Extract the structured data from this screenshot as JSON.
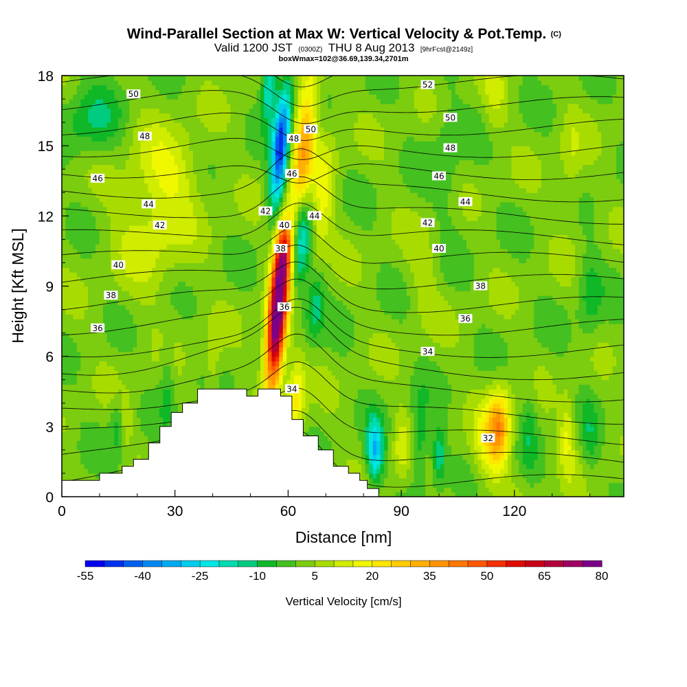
{
  "title": {
    "main": "Wind-Parallel Section at Max W: Vertical Velocity & Pot.Temp.",
    "main_mark": "(C)",
    "valid_prefix": "Valid 1200 JST",
    "valid_zulu": "(0300Z)",
    "valid_date": "THU 8 Aug 2013",
    "forecast": "[9hrFcst@2149z]",
    "box": "boxWmax=102@36.69,139.34,2701m"
  },
  "chart_data": {
    "type": "heatmap",
    "xlabel": "Distance [nm]",
    "ylabel": "Height [Kft MSL]",
    "xlim": [
      0,
      149
    ],
    "ylim": [
      0,
      18
    ],
    "x_ticks": [
      0,
      30,
      60,
      90,
      120
    ],
    "y_ticks": [
      0,
      3,
      6,
      9,
      12,
      15,
      18
    ],
    "terrain": [
      [
        0,
        0.7
      ],
      [
        10,
        0.7
      ],
      [
        10,
        1.0
      ],
      [
        16,
        1.0
      ],
      [
        16,
        1.3
      ],
      [
        19,
        1.3
      ],
      [
        19,
        1.6
      ],
      [
        23,
        1.6
      ],
      [
        23,
        2.3
      ],
      [
        26,
        2.3
      ],
      [
        26,
        3.0
      ],
      [
        29,
        3.0
      ],
      [
        29,
        3.6
      ],
      [
        32,
        3.6
      ],
      [
        32,
        4.0
      ],
      [
        36,
        4.0
      ],
      [
        36,
        4.6
      ],
      [
        49,
        4.6
      ],
      [
        49,
        4.3
      ],
      [
        52,
        4.3
      ],
      [
        52,
        4.6
      ],
      [
        58,
        4.6
      ],
      [
        58,
        4.3
      ],
      [
        61,
        4.3
      ],
      [
        61,
        3.3
      ],
      [
        64,
        3.3
      ],
      [
        64,
        2.6
      ],
      [
        68,
        2.6
      ],
      [
        68,
        2.0
      ],
      [
        72,
        2.0
      ],
      [
        72,
        1.3
      ],
      [
        76,
        1.3
      ],
      [
        76,
        1.0
      ],
      [
        79,
        1.0
      ],
      [
        79,
        0.7
      ],
      [
        81,
        0.7
      ],
      [
        81,
        0.35
      ],
      [
        84,
        0.35
      ],
      [
        84,
        0.0
      ],
      [
        149,
        0.0
      ]
    ],
    "w_features": [
      {
        "x": 57,
        "y": 7.5,
        "sx": 2.5,
        "sy": 2.8,
        "value": 85,
        "tilt": 0.45
      },
      {
        "x": 59,
        "y": 10.5,
        "sx": 2.5,
        "sy": 1.5,
        "value": 45,
        "tilt": 0.45
      },
      {
        "x": 64,
        "y": 14.5,
        "sx": 3.0,
        "sy": 4.0,
        "value": 32,
        "tilt": 0.55
      },
      {
        "x": 69,
        "y": 12.5,
        "sx": 3.0,
        "sy": 3.0,
        "value": 14,
        "tilt": 0.55
      },
      {
        "x": 62,
        "y": 4.2,
        "sx": 2.5,
        "sy": 1.8,
        "value": 20,
        "tilt": 0.3
      },
      {
        "x": 58,
        "y": 15.0,
        "sx": 2.2,
        "sy": 2.6,
        "value": -50,
        "tilt": 0.55
      },
      {
        "x": 63,
        "y": 11.0,
        "sx": 3.0,
        "sy": 2.4,
        "value": -30,
        "tilt": 0.55
      },
      {
        "x": 67,
        "y": 8.2,
        "sx": 2.5,
        "sy": 1.6,
        "value": -15,
        "tilt": 0.5
      },
      {
        "x": 55,
        "y": 17.5,
        "sx": 2.0,
        "sy": 1.3,
        "value": -25,
        "tilt": 0.4
      },
      {
        "x": 83,
        "y": 2.0,
        "sx": 2.2,
        "sy": 1.3,
        "value": -32
      },
      {
        "x": 90,
        "y": 2.2,
        "sx": 2.2,
        "sy": 1.5,
        "value": 10
      },
      {
        "x": 95,
        "y": 2.5,
        "sx": 2.2,
        "sy": 1.8,
        "value": -14
      },
      {
        "x": 100,
        "y": 1.8,
        "sx": 1.8,
        "sy": 1.2,
        "value": -18
      },
      {
        "x": 116,
        "y": 3.0,
        "sx": 3.0,
        "sy": 1.6,
        "value": 30
      },
      {
        "x": 113,
        "y": 2.2,
        "sx": 4.0,
        "sy": 1.6,
        "value": 14
      },
      {
        "x": 124,
        "y": 3.0,
        "sx": 2.0,
        "sy": 2.0,
        "value": -8
      },
      {
        "x": 134,
        "y": 2.6,
        "sx": 2.0,
        "sy": 1.6,
        "value": 14
      },
      {
        "x": 140,
        "y": 2.6,
        "sx": 2.0,
        "sy": 1.6,
        "value": -8
      },
      {
        "x": 15,
        "y": 3.0,
        "sx": 2.0,
        "sy": 1.2,
        "value": -10
      },
      {
        "x": 17,
        "y": 3.2,
        "sx": 1.5,
        "sy": 1.0,
        "value": 10
      },
      {
        "x": 28,
        "y": 5.0,
        "sx": 2.0,
        "sy": 1.8,
        "value": -8
      },
      {
        "x": 40,
        "y": 5.5,
        "sx": 2.0,
        "sy": 1.6,
        "value": 8
      },
      {
        "x": 24,
        "y": 12.0,
        "sx": 10.0,
        "sy": 3.2,
        "value": 11
      },
      {
        "x": 30,
        "y": 14.0,
        "sx": 8.0,
        "sy": 1.6,
        "value": 8
      },
      {
        "x": 8,
        "y": 16.0,
        "sx": 8.0,
        "sy": 1.6,
        "value": -11
      },
      {
        "x": 102,
        "y": 14.5,
        "sx": 4.0,
        "sy": 3.0,
        "value": -6
      },
      {
        "x": 115,
        "y": 17.0,
        "sx": 3.0,
        "sy": 1.6,
        "value": 8
      },
      {
        "x": 135,
        "y": 14.0,
        "sx": 3.0,
        "sy": 2.5,
        "value": 7
      },
      {
        "x": 140,
        "y": 8.5,
        "sx": 3.0,
        "sy": 2.0,
        "value": -9
      },
      {
        "x": 96,
        "y": 9.5,
        "sx": 4.0,
        "sy": 2.0,
        "value": 6
      }
    ],
    "theta_labels": [
      {
        "x": 19,
        "y": 17.2,
        "label": "50"
      },
      {
        "x": 22,
        "y": 15.4,
        "label": "48"
      },
      {
        "x": 9.5,
        "y": 13.6,
        "label": "46"
      },
      {
        "x": 23,
        "y": 12.5,
        "label": "44"
      },
      {
        "x": 26,
        "y": 11.6,
        "label": "42"
      },
      {
        "x": 15,
        "y": 9.9,
        "label": "40"
      },
      {
        "x": 13,
        "y": 8.6,
        "label": "38"
      },
      {
        "x": 9.5,
        "y": 7.2,
        "label": "36"
      },
      {
        "x": 97,
        "y": 17.6,
        "label": "52"
      },
      {
        "x": 103,
        "y": 16.2,
        "label": "50"
      },
      {
        "x": 103,
        "y": 14.9,
        "label": "48"
      },
      {
        "x": 100,
        "y": 13.7,
        "label": "46"
      },
      {
        "x": 107,
        "y": 12.6,
        "label": "44"
      },
      {
        "x": 97,
        "y": 11.7,
        "label": "42"
      },
      {
        "x": 100,
        "y": 10.6,
        "label": "40"
      },
      {
        "x": 111,
        "y": 9.0,
        "label": "38"
      },
      {
        "x": 107,
        "y": 7.6,
        "label": "36"
      },
      {
        "x": 97,
        "y": 6.2,
        "label": "34"
      },
      {
        "x": 113,
        "y": 2.5,
        "label": "32"
      },
      {
        "x": 58,
        "y": 10.6,
        "label": "38"
      },
      {
        "x": 61.5,
        "y": 15.3,
        "label": "48"
      },
      {
        "x": 66,
        "y": 15.7,
        "label": "50"
      },
      {
        "x": 61,
        "y": 13.8,
        "label": "46"
      },
      {
        "x": 67,
        "y": 12.0,
        "label": "44"
      },
      {
        "x": 54,
        "y": 12.2,
        "label": "42"
      },
      {
        "x": 59,
        "y": 11.6,
        "label": "40"
      },
      {
        "x": 59,
        "y": 8.1,
        "label": "36"
      },
      {
        "x": 61,
        "y": 4.6,
        "label": "34"
      }
    ],
    "colorbar": {
      "label": "Vertical Velocity [cm/s]",
      "tick_labels": [
        "-55",
        "-40",
        "-25",
        "-10",
        "5",
        "20",
        "35",
        "50",
        "65",
        "80"
      ],
      "bins": [
        -55,
        -50,
        -45,
        -40,
        -35,
        -30,
        -25,
        -20,
        -15,
        -10,
        -5,
        0,
        5,
        10,
        15,
        20,
        25,
        30,
        35,
        40,
        45,
        50,
        55,
        60,
        65,
        70,
        75,
        80
      ],
      "colors": [
        "#0000f0",
        "#0030f0",
        "#0060f0",
        "#0088f0",
        "#00aaf0",
        "#00ccee",
        "#00e6e6",
        "#00dcb0",
        "#00cc80",
        "#10b828",
        "#44c020",
        "#7ccc10",
        "#a8dc00",
        "#d0ec00",
        "#f0f800",
        "#ffe600",
        "#ffcc00",
        "#ffb000",
        "#ff9400",
        "#ff7800",
        "#ff5800",
        "#f43000",
        "#e00c00",
        "#c80018",
        "#b4003c",
        "#a00064",
        "#7c0088"
      ]
    }
  }
}
